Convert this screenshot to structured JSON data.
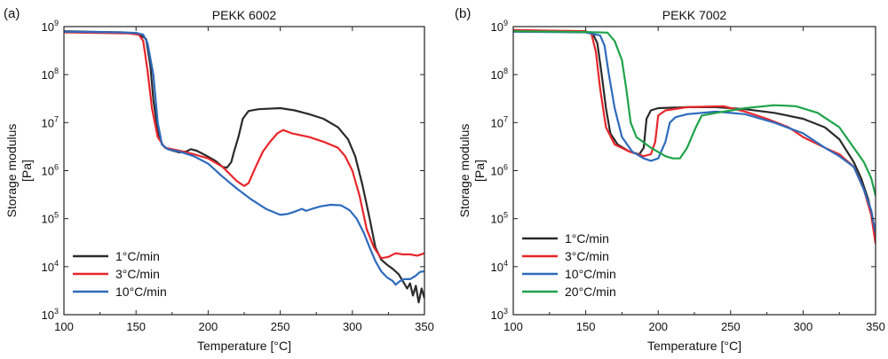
{
  "panels": [
    {
      "label": "(a)"
    },
    {
      "label": "(b)"
    }
  ],
  "chart_data": [
    {
      "type": "line",
      "title": "PEKK 6002",
      "xlabel": "Temperature [°C]",
      "ylabel": "Storage modulus",
      "ylabel_unit": "[Pa]",
      "xlim": [
        100,
        350
      ],
      "ylim": [
        1000,
        1000000000
      ],
      "yscale": "log",
      "x_ticks": [
        "100",
        "150",
        "200",
        "250",
        "300",
        "350"
      ],
      "y_ticks": [
        {
          "base": "10",
          "exp": "3"
        },
        {
          "base": "10",
          "exp": "4"
        },
        {
          "base": "10",
          "exp": "5"
        },
        {
          "base": "10",
          "exp": "6"
        },
        {
          "base": "10",
          "exp": "7"
        },
        {
          "base": "10",
          "exp": "8"
        },
        {
          "base": "10",
          "exp": "9"
        }
      ],
      "legend_position": "bottom-left",
      "grid": false,
      "series": [
        {
          "name": "1°C/min",
          "color": "#2b2b2b",
          "points": [
            [
              100,
              800000000.0
            ],
            [
              140,
              760000000.0
            ],
            [
              152,
              700000000.0
            ],
            [
              157,
              550000000.0
            ],
            [
              160,
              150000000.0
            ],
            [
              162,
              30000000.0
            ],
            [
              165,
              7000000.0
            ],
            [
              168,
              3500000.0
            ],
            [
              172,
              2800000.0
            ],
            [
              180,
              2400000.0
            ],
            [
              185,
              2500000.0
            ],
            [
              188,
              2800000.0
            ],
            [
              192,
              2600000.0
            ],
            [
              198,
              2100000.0
            ],
            [
              205,
              1600000.0
            ],
            [
              210,
              1200000.0
            ],
            [
              213,
              1150000.0
            ],
            [
              216,
              1500000.0
            ],
            [
              218,
              2500000.0
            ],
            [
              221,
              5000000.0
            ],
            [
              224,
              12000000.0
            ],
            [
              228,
              17500000.0
            ],
            [
              235,
              19000000.0
            ],
            [
              250,
              20000000.0
            ],
            [
              260,
              18000000.0
            ],
            [
              270,
              15000000.0
            ],
            [
              280,
              12000000.0
            ],
            [
              290,
              8000000.0
            ],
            [
              297,
              4500000.0
            ],
            [
              302,
              2000000.0
            ],
            [
              307,
              500000.0
            ],
            [
              312,
              100000.0
            ],
            [
              316,
              25000.0
            ],
            [
              320,
              14000.0
            ],
            [
              324,
              11000.0
            ],
            [
              328,
              9000.0
            ],
            [
              332,
              7000.0
            ],
            [
              335,
              5000.0
            ],
            [
              338,
              3500.0
            ],
            [
              340,
              4500.0
            ],
            [
              342,
              2500.0
            ],
            [
              344,
              4000.0
            ],
            [
              346,
              1800.0
            ],
            [
              348,
              3500.0
            ],
            [
              350,
              2200.0
            ]
          ]
        },
        {
          "name": "3°C/min",
          "color": "#e8262a",
          "points": [
            [
              100,
              760000000.0
            ],
            [
              145,
              720000000.0
            ],
            [
              152,
              680000000.0
            ],
            [
              155,
              500000000.0
            ],
            [
              158,
              120000000.0
            ],
            [
              161,
              20000000.0
            ],
            [
              165,
              5000000.0
            ],
            [
              170,
              3000000.0
            ],
            [
              180,
              2600000.0
            ],
            [
              190,
              2200000.0
            ],
            [
              200,
              1800000.0
            ],
            [
              210,
              1200000.0
            ],
            [
              220,
              600000.0
            ],
            [
              225,
              480000.0
            ],
            [
              228,
              550000.0
            ],
            [
              233,
              1200000.0
            ],
            [
              238,
              2500000.0
            ],
            [
              243,
              4000000.0
            ],
            [
              248,
              6000000.0
            ],
            [
              252,
              7000000.0
            ],
            [
              258,
              6000000.0
            ],
            [
              270,
              5000000.0
            ],
            [
              280,
              4000000.0
            ],
            [
              290,
              3000000.0
            ],
            [
              295,
              2000000.0
            ],
            [
              300,
              1000000.0
            ],
            [
              305,
              300000.0
            ],
            [
              310,
              60000.0
            ],
            [
              315,
              25000.0
            ],
            [
              320,
              15000.0
            ],
            [
              325,
              16000.0
            ],
            [
              330,
              19000.0
            ],
            [
              335,
              18000.0
            ],
            [
              340,
              18000.0
            ],
            [
              345,
              17000.0
            ],
            [
              350,
              19000.0
            ]
          ]
        },
        {
          "name": "10°C/min",
          "color": "#2e6bbd",
          "points": [
            [
              100,
              780000000.0
            ],
            [
              140,
              760000000.0
            ],
            [
              150,
              740000000.0
            ],
            [
              155,
              680000000.0
            ],
            [
              158,
              450000000.0
            ],
            [
              162,
              100000000.0
            ],
            [
              165,
              10000000.0
            ],
            [
              168,
              3500000.0
            ],
            [
              172,
              2800000.0
            ],
            [
              180,
              2500000.0
            ],
            [
              190,
              2000000.0
            ],
            [
              200,
              1400000.0
            ],
            [
              210,
              750000.0
            ],
            [
              220,
              420000.0
            ],
            [
              230,
              250000.0
            ],
            [
              240,
              160000.0
            ],
            [
              250,
              120000.0
            ],
            [
              255,
              125000.0
            ],
            [
              260,
              140000.0
            ],
            [
              265,
              160000.0
            ],
            [
              268,
              145000.0
            ],
            [
              272,
              160000.0
            ],
            [
              278,
              180000.0
            ],
            [
              285,
              195000.0
            ],
            [
              292,
              190000.0
            ],
            [
              298,
              150000.0
            ],
            [
              303,
              100000.0
            ],
            [
              308,
              50000.0
            ],
            [
              312,
              25000.0
            ],
            [
              316,
              13000.0
            ],
            [
              320,
              8000.0
            ],
            [
              324,
              6000.0
            ],
            [
              328,
              5000.0
            ],
            [
              330,
              4200.0
            ],
            [
              333,
              5000.0
            ],
            [
              336,
              5500.0
            ],
            [
              340,
              5500.0
            ],
            [
              344,
              6500.0
            ],
            [
              347,
              7800.0
            ],
            [
              350,
              8000.0
            ]
          ]
        }
      ]
    },
    {
      "type": "line",
      "title": "PEKK 7002",
      "xlabel": "Temperature [°C]",
      "ylabel": "Storage modulus",
      "ylabel_unit": "[Pa]",
      "xlim": [
        100,
        350
      ],
      "ylim": [
        1000,
        1000000000
      ],
      "yscale": "log",
      "x_ticks": [
        "100",
        "150",
        "200",
        "250",
        "300",
        "350"
      ],
      "y_ticks": [
        {
          "base": "10",
          "exp": "3"
        },
        {
          "base": "10",
          "exp": "4"
        },
        {
          "base": "10",
          "exp": "5"
        },
        {
          "base": "10",
          "exp": "6"
        },
        {
          "base": "10",
          "exp": "7"
        },
        {
          "base": "10",
          "exp": "8"
        },
        {
          "base": "10",
          "exp": "9"
        }
      ],
      "legend_position": "bottom-left",
      "grid": false,
      "series": [
        {
          "name": "1°C/min",
          "color": "#2b2b2b",
          "points": [
            [
              100,
              800000000.0
            ],
            [
              150,
              780000000.0
            ],
            [
              155,
              700000000.0
            ],
            [
              158,
              450000000.0
            ],
            [
              161,
              100000000.0
            ],
            [
              164,
              20000000.0
            ],
            [
              167,
              6000000.0
            ],
            [
              172,
              3500000.0
            ],
            [
              180,
              2500000.0
            ],
            [
              187,
              2200000.0
            ],
            [
              190,
              3000000.0
            ],
            [
              192,
              12000000.0
            ],
            [
              195,
              18000000.0
            ],
            [
              200,
              20000000.0
            ],
            [
              220,
              21000000.0
            ],
            [
              240,
              21000000.0
            ],
            [
              260,
              19000000.0
            ],
            [
              280,
              16000000.0
            ],
            [
              300,
              12000000.0
            ],
            [
              315,
              8000000.0
            ],
            [
              325,
              4500000.0
            ],
            [
              335,
              1500000.0
            ],
            [
              340,
              700000.0
            ],
            [
              345,
              250000.0
            ],
            [
              350,
              50000.0
            ]
          ]
        },
        {
          "name": "3°C/min",
          "color": "#e8262a",
          "points": [
            [
              100,
              850000000.0
            ],
            [
              150,
              800000000.0
            ],
            [
              154,
              700000000.0
            ],
            [
              157,
              300000000.0
            ],
            [
              160,
              50000000.0
            ],
            [
              164,
              8000000.0
            ],
            [
              170,
              3500000.0
            ],
            [
              180,
              2500000.0
            ],
            [
              190,
              2000000.0
            ],
            [
              195,
              2200000.0
            ],
            [
              198,
              4000000.0
            ],
            [
              200,
              14000000.0
            ],
            [
              205,
              18000000.0
            ],
            [
              220,
              21000000.0
            ],
            [
              245,
              22000000.0
            ],
            [
              260,
              17000000.0
            ],
            [
              275,
              12000000.0
            ],
            [
              290,
              8000000.0
            ],
            [
              300,
              5000000.0
            ],
            [
              315,
              3000000.0
            ],
            [
              325,
              2200000.0
            ],
            [
              335,
              1200000.0
            ],
            [
              342,
              400000.0
            ],
            [
              347,
              120000.0
            ],
            [
              350,
              30000.0
            ]
          ]
        },
        {
          "name": "10°C/min",
          "color": "#2e6bbd",
          "points": [
            [
              100,
              780000000.0
            ],
            [
              150,
              760000000.0
            ],
            [
              160,
              650000000.0
            ],
            [
              163,
              400000000.0
            ],
            [
              166,
              100000000.0
            ],
            [
              170,
              20000000.0
            ],
            [
              175,
              5000000.0
            ],
            [
              182,
              2500000.0
            ],
            [
              190,
              1800000.0
            ],
            [
              195,
              1600000.0
            ],
            [
              200,
              1800000.0
            ],
            [
              205,
              4000000.0
            ],
            [
              208,
              10000000.0
            ],
            [
              212,
              13000000.0
            ],
            [
              220,
              15000000.0
            ],
            [
              240,
              17000000.0
            ],
            [
              260,
              15000000.0
            ],
            [
              280,
              10000000.0
            ],
            [
              300,
              6000000.0
            ],
            [
              315,
              3000000.0
            ],
            [
              325,
              2000000.0
            ],
            [
              335,
              1200000.0
            ],
            [
              342,
              400000.0
            ],
            [
              347,
              150000.0
            ],
            [
              350,
              50000.0
            ]
          ]
        },
        {
          "name": "20°C/min",
          "color": "#1fa34a",
          "points": [
            [
              100,
              800000000.0
            ],
            [
              150,
              770000000.0
            ],
            [
              165,
              750000000.0
            ],
            [
              170,
              500000000.0
            ],
            [
              175,
              200000000.0
            ],
            [
              178,
              50000000.0
            ],
            [
              181,
              10000000.0
            ],
            [
              185,
              5000000.0
            ],
            [
              195,
              3000000.0
            ],
            [
              205,
              2000000.0
            ],
            [
              210,
              1800000.0
            ],
            [
              215,
              1800000.0
            ],
            [
              220,
              3000000.0
            ],
            [
              226,
              8000000.0
            ],
            [
              230,
              14000000.0
            ],
            [
              240,
              16000000.0
            ],
            [
              260,
              20000000.0
            ],
            [
              280,
              23000000.0
            ],
            [
              295,
              22000000.0
            ],
            [
              310,
              16000000.0
            ],
            [
              325,
              8000000.0
            ],
            [
              335,
              3000000.0
            ],
            [
              342,
              1500000.0
            ],
            [
              347,
              700000.0
            ],
            [
              350,
              300000.0
            ]
          ]
        }
      ]
    }
  ]
}
